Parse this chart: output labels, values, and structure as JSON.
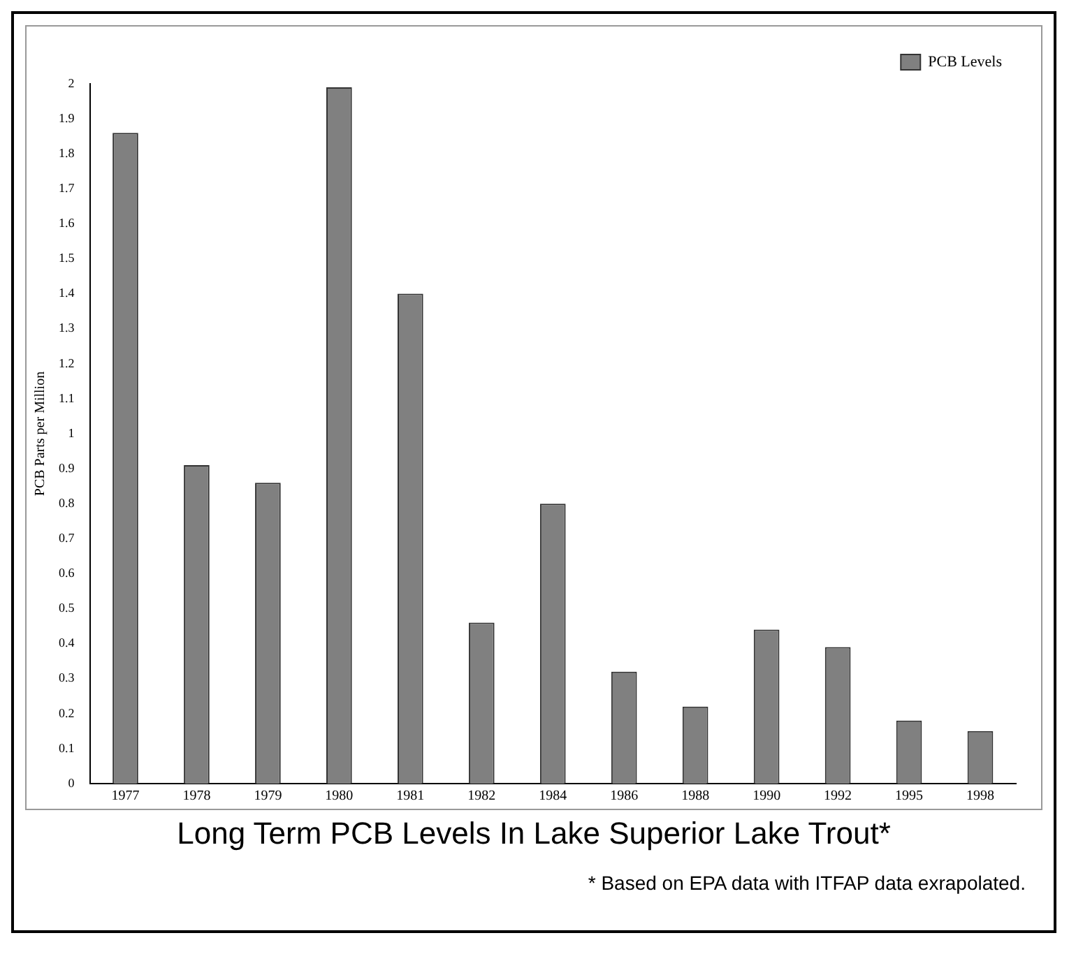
{
  "chart_data": {
    "type": "bar",
    "title": "Long Term PCB Levels In Lake Superior Lake Trout*",
    "ylabel": "PCB Parts per Million",
    "annotations": [
      "* Based on EPA data with ITFAP data exrapolated."
    ],
    "categories": [
      "1977",
      "1978",
      "1979",
      "1980",
      "1981",
      "1982",
      "1984",
      "1986",
      "1988",
      "1990",
      "1992",
      "1995",
      "1998"
    ],
    "series": [
      {
        "name": "PCB Levels",
        "color": "#808080",
        "values": [
          1.86,
          0.91,
          0.86,
          1.99,
          1.4,
          0.46,
          0.8,
          0.32,
          0.22,
          0.44,
          0.39,
          0.18,
          0.15
        ]
      }
    ],
    "ylim": [
      0,
      2
    ],
    "yticks": [
      0,
      0.1,
      0.2,
      0.3,
      0.4,
      0.5,
      0.6,
      0.7,
      0.8,
      0.9,
      1,
      1.1,
      1.2,
      1.3,
      1.4,
      1.5,
      1.6,
      1.7,
      1.8,
      1.9,
      2
    ],
    "grid": false,
    "legend": "top right"
  }
}
